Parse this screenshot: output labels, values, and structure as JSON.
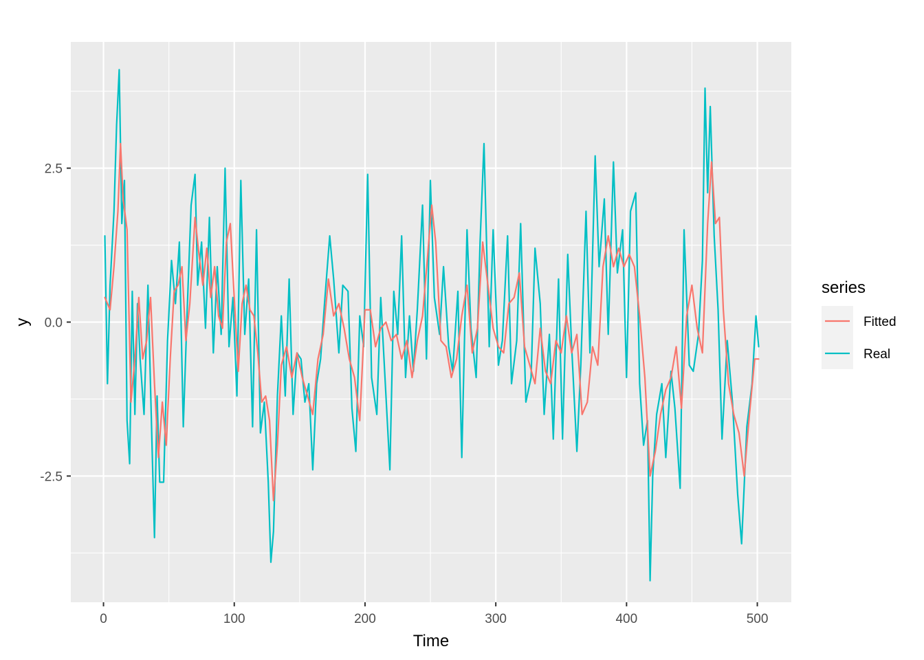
{
  "chart_data": {
    "type": "line",
    "title": "",
    "xlabel": "Time",
    "ylabel": "y",
    "xlim": [
      -25,
      526
    ],
    "ylim": [
      -4.55,
      4.55
    ],
    "x_ticks": [
      0,
      100,
      200,
      300,
      400,
      500
    ],
    "x_tick_labels": [
      "0",
      "100",
      "200",
      "300",
      "400",
      "500"
    ],
    "y_ticks": [
      -2.5,
      0,
      2.5
    ],
    "y_tick_labels": [
      "-2.5",
      "0.0",
      "2.5"
    ],
    "grid": true,
    "legend": {
      "title": "series",
      "placement": "right"
    },
    "series": [
      {
        "name": "Fitted",
        "color": "#F8766D",
        "x": [
          1,
          5,
          8,
          11,
          13,
          15,
          18,
          21,
          24,
          27,
          30,
          33,
          36,
          39,
          42,
          45,
          48,
          51,
          54,
          57,
          60,
          63,
          66,
          70,
          73,
          76,
          79,
          82,
          85,
          88,
          91,
          94,
          97,
          100,
          103,
          106,
          109,
          112,
          115,
          118,
          121,
          124,
          127,
          130,
          133,
          136,
          140,
          144,
          148,
          152,
          156,
          160,
          164,
          168,
          172,
          176,
          180,
          184,
          188,
          192,
          196,
          200,
          204,
          208,
          212,
          216,
          220,
          224,
          228,
          232,
          236,
          240,
          244,
          248,
          251,
          254,
          258,
          262,
          266,
          270,
          274,
          278,
          282,
          286,
          290,
          294,
          298,
          302,
          306,
          310,
          314,
          318,
          322,
          326,
          330,
          334,
          338,
          342,
          346,
          350,
          354,
          358,
          362,
          366,
          370,
          374,
          378,
          382,
          386,
          390,
          394,
          398,
          402,
          406,
          410,
          414,
          418,
          422,
          426,
          430,
          434,
          438,
          442,
          446,
          450,
          454,
          458,
          462,
          465,
          468,
          471,
          474,
          478,
          482,
          486,
          490,
          494,
          498,
          501
        ],
        "values": [
          0.4,
          0.2,
          0.9,
          1.8,
          2.9,
          2.0,
          1.5,
          -1.3,
          -0.6,
          0.4,
          -0.6,
          -0.3,
          0.4,
          -1.0,
          -2.2,
          -1.3,
          -2.0,
          -0.6,
          0.5,
          0.6,
          0.9,
          -0.3,
          0.3,
          1.7,
          1.1,
          0.6,
          1.2,
          0.4,
          0.9,
          0.1,
          -0.1,
          1.3,
          1.6,
          0.4,
          -0.8,
          0.3,
          0.6,
          0.2,
          0.1,
          -0.5,
          -1.3,
          -1.2,
          -1.6,
          -2.9,
          -2.0,
          -0.7,
          -0.4,
          -0.9,
          -0.5,
          -0.9,
          -1.2,
          -1.5,
          -0.6,
          -0.2,
          0.7,
          0.1,
          0.3,
          -0.1,
          -0.6,
          -0.9,
          -1.6,
          0.2,
          0.2,
          -0.4,
          -0.1,
          0.0,
          -0.3,
          -0.2,
          -0.6,
          -0.3,
          -0.9,
          -0.3,
          0.1,
          1.1,
          1.9,
          1.3,
          -0.3,
          -0.4,
          -0.9,
          -0.6,
          0.1,
          0.6,
          -0.5,
          -0.1,
          1.3,
          0.6,
          -0.1,
          -0.4,
          -0.5,
          0.3,
          0.4,
          0.8,
          -0.4,
          -0.7,
          -1.0,
          -0.1,
          -0.8,
          -1.0,
          -0.3,
          -0.5,
          0.1,
          -0.5,
          -0.2,
          -1.5,
          -1.3,
          -0.4,
          -0.7,
          0.9,
          1.4,
          0.9,
          1.2,
          0.9,
          1.1,
          0.9,
          0.1,
          -0.9,
          -2.5,
          -2.1,
          -1.5,
          -1.1,
          -0.9,
          -0.4,
          -1.4,
          0.1,
          0.6,
          -0.1,
          -0.5,
          1.6,
          2.6,
          1.6,
          1.7,
          0.2,
          -1.0,
          -1.5,
          -1.8,
          -2.5,
          -1.5,
          -0.6,
          -0.6
        ]
      },
      {
        "name": "Real",
        "color": "#00BFC4",
        "x": [
          1,
          3,
          5,
          8,
          10,
          12,
          14,
          16,
          18,
          20,
          22,
          24,
          26,
          28,
          31,
          34,
          37,
          39,
          41,
          43,
          46,
          49,
          52,
          55,
          58,
          61,
          64,
          67,
          70,
          72,
          75,
          78,
          81,
          84,
          87,
          90,
          93,
          96,
          99,
          102,
          105,
          108,
          111,
          114,
          117,
          120,
          123,
          126,
          128,
          130,
          133,
          136,
          139,
          142,
          145,
          148,
          151,
          154,
          157,
          160,
          163,
          166,
          169,
          173,
          176,
          180,
          183,
          187,
          190,
          193,
          196,
          199,
          202,
          205,
          209,
          212,
          216,
          219,
          222,
          225,
          228,
          231,
          234,
          237,
          240,
          244,
          247,
          250,
          253,
          257,
          260,
          264,
          267,
          271,
          274,
          278,
          281,
          285,
          288,
          291,
          295,
          298,
          302,
          305,
          309,
          312,
          316,
          319,
          323,
          327,
          330,
          334,
          337,
          341,
          344,
          348,
          351,
          355,
          358,
          362,
          365,
          369,
          372,
          376,
          379,
          383,
          386,
          390,
          393,
          397,
          400,
          403,
          407,
          410,
          413,
          416,
          418,
          420,
          423,
          427,
          430,
          434,
          437,
          441,
          444,
          448,
          451,
          455,
          458,
          460,
          462,
          464,
          467,
          470,
          473,
          477,
          481,
          485,
          488,
          492,
          496,
          499,
          501
        ],
        "values": [
          1.4,
          -1.0,
          0.6,
          1.8,
          3.2,
          4.1,
          1.6,
          2.3,
          -1.6,
          -2.3,
          0.5,
          -1.5,
          0.3,
          -0.6,
          -1.5,
          0.6,
          -1.9,
          -3.5,
          -1.2,
          -2.6,
          -2.6,
          -0.3,
          1.0,
          0.3,
          1.3,
          -1.7,
          0.2,
          1.9,
          2.4,
          0.6,
          1.3,
          -0.1,
          1.7,
          -0.5,
          0.9,
          -0.2,
          2.5,
          -0.4,
          0.4,
          -1.2,
          2.3,
          -0.2,
          0.7,
          -1.7,
          1.5,
          -1.8,
          -1.3,
          -2.6,
          -3.9,
          -3.4,
          -1.2,
          0.1,
          -1.2,
          0.7,
          -1.5,
          -0.5,
          -0.6,
          -1.3,
          -1.0,
          -2.4,
          -1.0,
          -0.6,
          0.3,
          1.4,
          0.7,
          -0.5,
          0.6,
          0.5,
          -1.4,
          -2.1,
          0.1,
          -0.4,
          2.4,
          -0.9,
          -1.5,
          0.4,
          -1.2,
          -2.4,
          0.5,
          -0.2,
          1.4,
          -0.9,
          0.1,
          -0.8,
          0.2,
          1.9,
          -0.6,
          2.3,
          0.4,
          -0.2,
          0.9,
          -0.4,
          -0.8,
          0.5,
          -2.2,
          1.5,
          -0.1,
          -0.9,
          1.3,
          2.9,
          -0.4,
          1.5,
          -0.7,
          -0.3,
          1.4,
          -1.0,
          -0.3,
          1.6,
          -1.3,
          -0.9,
          1.2,
          0.3,
          -1.5,
          -0.2,
          -1.9,
          0.7,
          -1.9,
          1.1,
          -0.4,
          -2.1,
          -0.7,
          1.8,
          -0.5,
          2.7,
          0.9,
          2.0,
          -0.2,
          2.6,
          0.8,
          1.5,
          -0.9,
          1.8,
          2.1,
          -1.0,
          -2.0,
          -1.6,
          -4.2,
          -2.5,
          -1.5,
          -1.0,
          -2.2,
          -0.8,
          -1.4,
          -2.7,
          1.5,
          -0.7,
          -0.8,
          -0.2,
          1.0,
          3.8,
          2.1,
          3.5,
          1.4,
          0.2,
          -1.9,
          -0.3,
          -1.3,
          -2.8,
          -3.6,
          -1.7,
          -1.0,
          0.1,
          -0.4
        ]
      }
    ]
  }
}
